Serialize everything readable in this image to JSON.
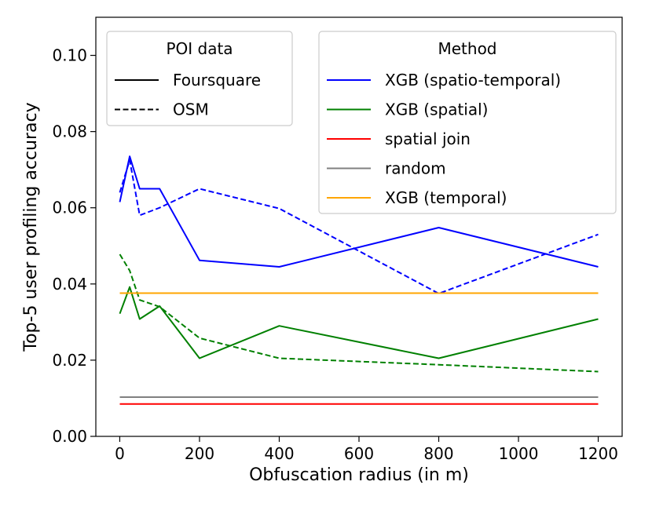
{
  "chart_data": {
    "type": "line",
    "xlabel": "Obfuscation radius (in m)",
    "ylabel": "Top-5 user profiling accuracy",
    "xlim": [
      -60,
      1260
    ],
    "ylim": [
      0,
      0.11
    ],
    "xticks": [
      0,
      200,
      400,
      600,
      800,
      1000,
      1200
    ],
    "xtick_labels": [
      "0",
      "200",
      "400",
      "600",
      "800",
      "1000",
      "1200"
    ],
    "yticks": [
      0,
      0.02,
      0.04,
      0.06,
      0.08,
      0.1
    ],
    "ytick_labels": [
      "0.00",
      "0.02",
      "0.04",
      "0.06",
      "0.08",
      "0.10"
    ],
    "grid": false,
    "legends": [
      {
        "title": "POI data",
        "placement": "top-left",
        "entries": [
          {
            "label": "Foursquare",
            "style": "solid"
          },
          {
            "label": "OSM",
            "style": "dashed"
          }
        ]
      },
      {
        "title": "Method",
        "placement": "top-right",
        "entries": [
          {
            "label": "XGB (spatio-temporal)",
            "color": "#0000ff"
          },
          {
            "label": "XGB (spatial)",
            "color": "#008000"
          },
          {
            "label": "spatial join",
            "color": "#ff0000"
          },
          {
            "label": "random",
            "color": "#808080"
          },
          {
            "label": "XGB (temporal)",
            "color": "#ffa500"
          }
        ]
      }
    ],
    "series": [
      {
        "method": "XGB (spatio-temporal)",
        "poi": "Foursquare",
        "color": "#0000ff",
        "style": "solid",
        "x": [
          0,
          25,
          50,
          100,
          200,
          400,
          800,
          1200
        ],
        "y": [
          0.0615,
          0.0735,
          0.065,
          0.065,
          0.0462,
          0.0445,
          0.0548,
          0.0445
        ]
      },
      {
        "method": "XGB (spatio-temporal)",
        "poi": "OSM",
        "color": "#0000ff",
        "style": "dashed",
        "x": [
          0,
          25,
          50,
          100,
          200,
          400,
          800,
          1200
        ],
        "y": [
          0.064,
          0.0725,
          0.058,
          0.06,
          0.065,
          0.0598,
          0.0375,
          0.053
        ]
      },
      {
        "method": "XGB (spatial)",
        "poi": "Foursquare",
        "color": "#008000",
        "style": "solid",
        "x": [
          0,
          25,
          50,
          100,
          200,
          400,
          800,
          1200
        ],
        "y": [
          0.0322,
          0.0392,
          0.0308,
          0.0342,
          0.0205,
          0.029,
          0.0205,
          0.0308
        ]
      },
      {
        "method": "XGB (spatial)",
        "poi": "OSM",
        "color": "#008000",
        "style": "dashed",
        "x": [
          0,
          25,
          50,
          100,
          200,
          400,
          800,
          1200
        ],
        "y": [
          0.0478,
          0.0435,
          0.0358,
          0.034,
          0.0258,
          0.0205,
          0.0188,
          0.017
        ]
      },
      {
        "method": "spatial join",
        "poi": "Foursquare",
        "color": "#ff0000",
        "style": "solid",
        "x": [
          0,
          1200
        ],
        "y": [
          0.0085,
          0.0085
        ]
      },
      {
        "method": "random",
        "poi": "Foursquare",
        "color": "#808080",
        "style": "solid",
        "x": [
          0,
          1200
        ],
        "y": [
          0.0103,
          0.0103
        ]
      },
      {
        "method": "XGB (temporal)",
        "poi": "Foursquare",
        "color": "#ffa500",
        "style": "solid",
        "x": [
          0,
          1200
        ],
        "y": [
          0.0376,
          0.0376
        ]
      }
    ]
  }
}
